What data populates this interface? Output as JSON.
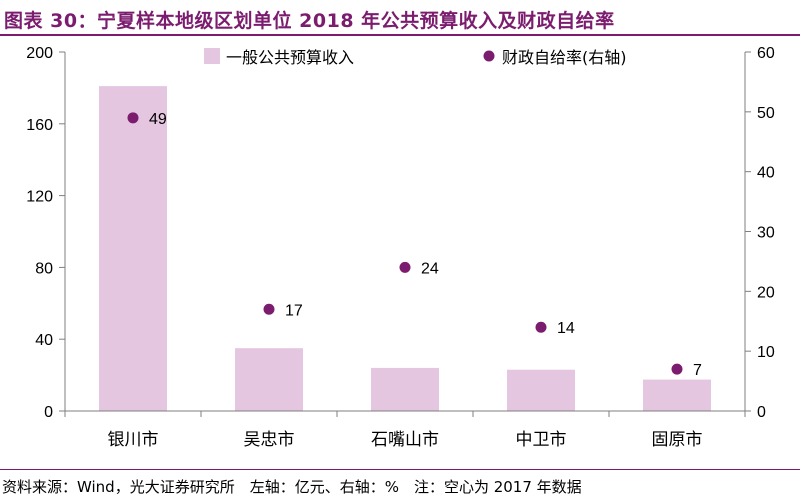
{
  "header": {
    "title": "图表 30：宁夏样本地级区划单位 2018 年公共预算收入及财政自给率"
  },
  "footer": {
    "source": "资料来源：Wind，光大证券研究所　左轴：亿元、右轴：%　注：空心为 2017 年数据"
  },
  "colors": {
    "accent": "#7b1c6e",
    "bar": "#e4c6e1",
    "dot": "#7b1c6e",
    "axis": "#7f7f7f"
  },
  "chart_data": {
    "type": "bar",
    "title": "宁夏样本地级区划单位 2018 年公共预算收入及财政自给率",
    "categories": [
      "银川市",
      "吴忠市",
      "石嘴山市",
      "中卫市",
      "固原市"
    ],
    "series": [
      {
        "name": "一般公共预算收入",
        "type": "bar",
        "axis": "left",
        "values": [
          181,
          35,
          24,
          23,
          17.5
        ]
      },
      {
        "name": "财政自给率(右轴)",
        "type": "scatter",
        "axis": "right",
        "values": [
          49,
          17,
          24,
          14,
          7
        ],
        "labels": [
          "49",
          "17",
          "24",
          "14",
          "7"
        ]
      }
    ],
    "y_left": {
      "lim": [
        0,
        200
      ],
      "ticks": [
        "0",
        "40",
        "80",
        "120",
        "160",
        "200"
      ]
    },
    "y_right": {
      "lim": [
        0,
        60
      ],
      "ticks": [
        "0",
        "10",
        "20",
        "30",
        "40",
        "50",
        "60"
      ]
    },
    "legend": {
      "position": "top",
      "entries": [
        "一般公共预算收入",
        "财政自给率(右轴)"
      ]
    }
  }
}
